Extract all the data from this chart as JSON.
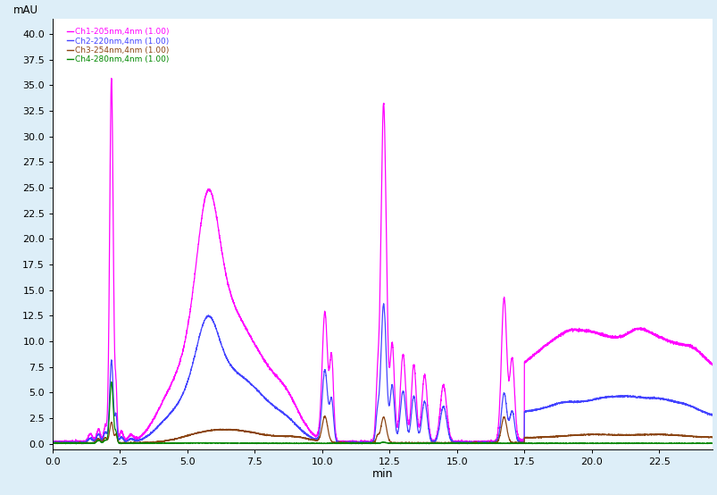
{
  "ylabel": "mAU",
  "xlabel": "min",
  "xlim": [
    0.0,
    24.5
  ],
  "ylim": [
    -0.5,
    41.5
  ],
  "yticks": [
    0.0,
    2.5,
    5.0,
    7.5,
    10.0,
    12.5,
    15.0,
    17.5,
    20.0,
    22.5,
    25.0,
    27.5,
    30.0,
    32.5,
    35.0,
    37.5,
    40.0
  ],
  "xticks": [
    0.0,
    2.5,
    5.0,
    7.5,
    10.0,
    12.5,
    15.0,
    17.5,
    20.0,
    22.5
  ],
  "legend_entries": [
    "Ch1-205nm,4nm (1.00)",
    "Ch2-220nm,4nm (1.00)",
    "Ch3-254nm,4nm (1.00)",
    "Ch4-280nm,4nm (1.00)"
  ],
  "legend_colors": [
    "#ff00ff",
    "#4444ff",
    "#8B4513",
    "#008800"
  ],
  "background_color": "#ddeef8",
  "plot_bg_color": "#ffffff",
  "linewidth": 0.9
}
